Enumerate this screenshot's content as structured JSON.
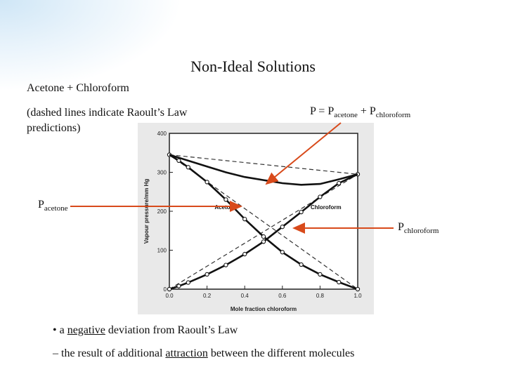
{
  "slide": {
    "title": "Non-Ideal Solutions",
    "subtitle": "Acetone + Chloroform",
    "note": "(dashed lines indicate Raoult’s Law predictions)",
    "equation": {
      "p": "P = P",
      "sub1": "acetone",
      "plus": " + P",
      "sub2": "chloroform"
    },
    "label_left": {
      "p": "P",
      "sub": "acetone"
    },
    "label_right": {
      "p": "P",
      "sub": "chloroform"
    },
    "bullet1": {
      "prefix": "• a ",
      "emph": "negative",
      "suffix": " deviation from Raoult’s Law"
    },
    "bullet2": {
      "prefix": "– the result of additional ",
      "emph": "attraction",
      "suffix": " between the different molecules"
    },
    "arrow_color": "#d84a1b"
  },
  "chart_data": {
    "type": "line",
    "xlabel": "Mole fraction chloroform",
    "ylabel": "Vapour pressure/mm Hg",
    "xlim": [
      0,
      1
    ],
    "ylim": [
      0,
      400
    ],
    "xticks": [
      "0.0",
      "0.2",
      "0.4",
      "0.6",
      "0.8",
      "1.0"
    ],
    "yticks": [
      "0",
      "100",
      "200",
      "300",
      "400"
    ],
    "series": [
      {
        "name": "Acetone",
        "points": [
          [
            0.0,
            345
          ],
          [
            0.05,
            330
          ],
          [
            0.1,
            313
          ],
          [
            0.2,
            275
          ],
          [
            0.3,
            230
          ],
          [
            0.4,
            180
          ],
          [
            0.5,
            135
          ],
          [
            0.6,
            95
          ],
          [
            0.7,
            63
          ],
          [
            0.8,
            38
          ],
          [
            0.9,
            18
          ],
          [
            1.0,
            0
          ]
        ]
      },
      {
        "name": "Chloroform",
        "points": [
          [
            0.0,
            0
          ],
          [
            0.05,
            8
          ],
          [
            0.1,
            17
          ],
          [
            0.2,
            38
          ],
          [
            0.3,
            62
          ],
          [
            0.4,
            90
          ],
          [
            0.5,
            122
          ],
          [
            0.6,
            160
          ],
          [
            0.7,
            198
          ],
          [
            0.8,
            237
          ],
          [
            0.9,
            272
          ],
          [
            1.0,
            295
          ]
        ]
      },
      {
        "name": "",
        "points": [
          [
            0.0,
            345
          ],
          [
            0.1,
            330
          ],
          [
            0.2,
            315
          ],
          [
            0.3,
            300
          ],
          [
            0.4,
            288
          ],
          [
            0.5,
            280
          ],
          [
            0.6,
            272
          ],
          [
            0.7,
            268
          ],
          [
            0.8,
            270
          ],
          [
            0.9,
            282
          ],
          [
            1.0,
            295
          ]
        ]
      }
    ],
    "raoult": {
      "acetone": [
        [
          0,
          345
        ],
        [
          1,
          0
        ]
      ],
      "chloroform": [
        [
          0,
          0
        ],
        [
          1,
          295
        ]
      ],
      "total": [
        [
          0,
          345
        ],
        [
          1,
          295
        ]
      ]
    }
  }
}
